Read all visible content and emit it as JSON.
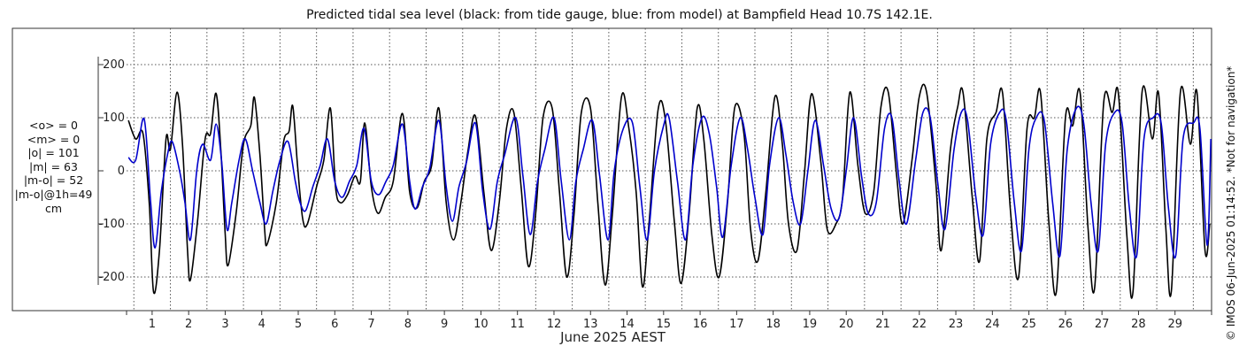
{
  "title": "Predicted tidal sea level (black: from tide gauge, blue: from model) at Bampfield Head 10.7S 142.1E.",
  "xlabel": "June 2025 AEST",
  "side_note": "© IMOS 06-Jun-2025 01:14:52. *Not for navigation*",
  "stats": [
    "<o> = 0",
    "<m> = 0",
    "|o| = 101",
    "|m| = 63",
    "|m-o| = 52",
    "|m-o|@1h=49",
    "cm"
  ],
  "colors": {
    "observed": "#000000",
    "model": "#0000cc",
    "grid": "#555555",
    "axis": "#333333"
  },
  "chart_data": {
    "type": "line",
    "title": "Predicted tidal sea level (black: from tide gauge, blue: from model) at Bampfield Head 10.7S 142.1E.",
    "xlabel": "June 2025 AEST",
    "ylabel": "",
    "xlim": [
      0.3,
      30
    ],
    "ylim": [
      -215,
      215
    ],
    "yticks": [
      -200,
      -100,
      0,
      100,
      200
    ],
    "xticks": [
      1,
      2,
      3,
      4,
      5,
      6,
      7,
      8,
      9,
      10,
      11,
      12,
      13,
      14,
      15,
      16,
      17,
      18,
      19,
      20,
      21,
      22,
      23,
      24,
      25,
      26,
      27,
      28,
      29
    ],
    "grid": {
      "x": true,
      "y": true,
      "style": "dotted"
    },
    "legend": "none",
    "series": [
      {
        "name": "from tide gauge",
        "color": "#000000",
        "points": [
          [
            0.35,
            95
          ],
          [
            0.55,
            60
          ],
          [
            0.75,
            70
          ],
          [
            0.92,
            -60
          ],
          [
            1.04,
            -228
          ],
          [
            1.2,
            -150
          ],
          [
            1.38,
            60
          ],
          [
            1.5,
            40
          ],
          [
            1.68,
            148
          ],
          [
            1.83,
            50
          ],
          [
            1.97,
            -150
          ],
          [
            2.05,
            -205
          ],
          [
            2.25,
            -90
          ],
          [
            2.45,
            60
          ],
          [
            2.6,
            70
          ],
          [
            2.75,
            146
          ],
          [
            2.88,
            40
          ],
          [
            3.0,
            -120
          ],
          [
            3.08,
            -178
          ],
          [
            3.3,
            -80
          ],
          [
            3.5,
            50
          ],
          [
            3.7,
            85
          ],
          [
            3.8,
            138
          ],
          [
            3.95,
            30
          ],
          [
            4.08,
            -110
          ],
          [
            4.15,
            -138
          ],
          [
            4.4,
            -60
          ],
          [
            4.6,
            55
          ],
          [
            4.75,
            75
          ],
          [
            4.85,
            122
          ],
          [
            4.98,
            10
          ],
          [
            5.12,
            -90
          ],
          [
            5.25,
            -100
          ],
          [
            5.5,
            -30
          ],
          [
            5.7,
            20
          ],
          [
            5.88,
            118
          ],
          [
            6.02,
            -30
          ],
          [
            6.15,
            -60
          ],
          [
            6.35,
            -45
          ],
          [
            6.55,
            -10
          ],
          [
            6.7,
            -20
          ],
          [
            6.82,
            90
          ],
          [
            7.0,
            -30
          ],
          [
            7.18,
            -80
          ],
          [
            7.38,
            -50
          ],
          [
            7.6,
            -20
          ],
          [
            7.85,
            108
          ],
          [
            8.05,
            -40
          ],
          [
            8.25,
            -70
          ],
          [
            8.45,
            -20
          ],
          [
            8.65,
            10
          ],
          [
            8.85,
            118
          ],
          [
            9.05,
            -60
          ],
          [
            9.25,
            -130
          ],
          [
            9.45,
            -60
          ],
          [
            9.65,
            40
          ],
          [
            9.85,
            103
          ],
          [
            10.08,
            -40
          ],
          [
            10.28,
            -150
          ],
          [
            10.5,
            -60
          ],
          [
            10.7,
            80
          ],
          [
            10.9,
            110
          ],
          [
            11.1,
            -30
          ],
          [
            11.3,
            -180
          ],
          [
            11.5,
            -80
          ],
          [
            11.7,
            100
          ],
          [
            11.95,
            118
          ],
          [
            12.15,
            -40
          ],
          [
            12.35,
            -200
          ],
          [
            12.55,
            -80
          ],
          [
            12.75,
            110
          ],
          [
            13.0,
            118
          ],
          [
            13.2,
            -60
          ],
          [
            13.4,
            -215
          ],
          [
            13.6,
            -80
          ],
          [
            13.85,
            140
          ],
          [
            14.05,
            80
          ],
          [
            14.25,
            -40
          ],
          [
            14.42,
            -218
          ],
          [
            14.6,
            -100
          ],
          [
            14.85,
            115
          ],
          [
            15.05,
            95
          ],
          [
            15.3,
            -100
          ],
          [
            15.48,
            -212
          ],
          [
            15.7,
            -80
          ],
          [
            15.92,
            118
          ],
          [
            16.1,
            60
          ],
          [
            16.32,
            -120
          ],
          [
            16.52,
            -200
          ],
          [
            16.75,
            -60
          ],
          [
            16.95,
            120
          ],
          [
            17.2,
            70
          ],
          [
            17.38,
            -110
          ],
          [
            17.58,
            -170
          ],
          [
            17.8,
            -40
          ],
          [
            18.05,
            140
          ],
          [
            18.25,
            50
          ],
          [
            18.42,
            -100
          ],
          [
            18.65,
            -150
          ],
          [
            18.85,
            -10
          ],
          [
            19.05,
            145
          ],
          [
            19.3,
            20
          ],
          [
            19.48,
            -110
          ],
          [
            19.72,
            -100
          ],
          [
            19.9,
            -50
          ],
          [
            20.1,
            148
          ],
          [
            20.32,
            10
          ],
          [
            20.52,
            -80
          ],
          [
            20.75,
            -40
          ],
          [
            20.95,
            120
          ],
          [
            21.15,
            148
          ],
          [
            21.38,
            -10
          ],
          [
            21.55,
            -100
          ],
          [
            21.8,
            20
          ],
          [
            22.0,
            140
          ],
          [
            22.2,
            148
          ],
          [
            22.45,
            -20
          ],
          [
            22.6,
            -150
          ],
          [
            22.85,
            40
          ],
          [
            23.05,
            120
          ],
          [
            23.2,
            146
          ],
          [
            23.45,
            -50
          ],
          [
            23.65,
            -170
          ],
          [
            23.85,
            60
          ],
          [
            24.1,
            110
          ],
          [
            24.28,
            146
          ],
          [
            24.5,
            -80
          ],
          [
            24.72,
            -200
          ],
          [
            24.95,
            80
          ],
          [
            25.15,
            100
          ],
          [
            25.32,
            146
          ],
          [
            25.55,
            -100
          ],
          [
            25.75,
            -228
          ],
          [
            26.0,
            100
          ],
          [
            26.2,
            85
          ],
          [
            26.4,
            148
          ],
          [
            26.62,
            -110
          ],
          [
            26.8,
            -220
          ],
          [
            27.05,
            130
          ],
          [
            27.28,
            110
          ],
          [
            27.45,
            146
          ],
          [
            27.68,
            -120
          ],
          [
            27.85,
            -228
          ],
          [
            28.1,
            150
          ],
          [
            28.38,
            60
          ],
          [
            28.55,
            146
          ],
          [
            28.75,
            -110
          ],
          [
            28.9,
            -226
          ],
          [
            29.15,
            150
          ],
          [
            29.42,
            50
          ],
          [
            29.6,
            148
          ],
          [
            29.82,
            -150
          ],
          [
            29.95,
            -100
          ]
        ]
      },
      {
        "name": "from model",
        "color": "#0000cc",
        "points": [
          [
            0.35,
            25
          ],
          [
            0.55,
            20
          ],
          [
            0.78,
            98
          ],
          [
            0.95,
            -50
          ],
          [
            1.08,
            -145
          ],
          [
            1.25,
            -40
          ],
          [
            1.42,
            30
          ],
          [
            1.55,
            55
          ],
          [
            1.75,
            0
          ],
          [
            1.9,
            -60
          ],
          [
            2.05,
            -130
          ],
          [
            2.22,
            0
          ],
          [
            2.38,
            50
          ],
          [
            2.6,
            20
          ],
          [
            2.75,
            88
          ],
          [
            2.9,
            20
          ],
          [
            3.05,
            -110
          ],
          [
            3.18,
            -60
          ],
          [
            3.38,
            20
          ],
          [
            3.55,
            60
          ],
          [
            3.75,
            0
          ],
          [
            3.95,
            -60
          ],
          [
            4.12,
            -100
          ],
          [
            4.3,
            -40
          ],
          [
            4.5,
            20
          ],
          [
            4.72,
            55
          ],
          [
            4.92,
            -20
          ],
          [
            5.05,
            -60
          ],
          [
            5.2,
            -75
          ],
          [
            5.4,
            -30
          ],
          [
            5.6,
            10
          ],
          [
            5.8,
            60
          ],
          [
            6.0,
            -20
          ],
          [
            6.2,
            -50
          ],
          [
            6.4,
            -20
          ],
          [
            6.6,
            10
          ],
          [
            6.8,
            80
          ],
          [
            7.0,
            -20
          ],
          [
            7.2,
            -45
          ],
          [
            7.4,
            -20
          ],
          [
            7.6,
            10
          ],
          [
            7.85,
            88
          ],
          [
            8.05,
            -20
          ],
          [
            8.2,
            -72
          ],
          [
            8.4,
            -30
          ],
          [
            8.6,
            5
          ],
          [
            8.85,
            95
          ],
          [
            9.05,
            -30
          ],
          [
            9.22,
            -95
          ],
          [
            9.4,
            -30
          ],
          [
            9.6,
            15
          ],
          [
            9.85,
            90
          ],
          [
            10.05,
            -40
          ],
          [
            10.25,
            -110
          ],
          [
            10.45,
            -20
          ],
          [
            10.65,
            30
          ],
          [
            10.95,
            100
          ],
          [
            11.15,
            -10
          ],
          [
            11.35,
            -120
          ],
          [
            11.55,
            -20
          ],
          [
            11.75,
            40
          ],
          [
            12.0,
            100
          ],
          [
            12.2,
            -20
          ],
          [
            12.42,
            -130
          ],
          [
            12.6,
            -20
          ],
          [
            12.8,
            40
          ],
          [
            13.05,
            95
          ],
          [
            13.25,
            -10
          ],
          [
            13.48,
            -130
          ],
          [
            13.65,
            0
          ],
          [
            13.9,
            80
          ],
          [
            14.15,
            90
          ],
          [
            14.35,
            -30
          ],
          [
            14.55,
            -130
          ],
          [
            14.75,
            0
          ],
          [
            15.0,
            85
          ],
          [
            15.15,
            100
          ],
          [
            15.38,
            -20
          ],
          [
            15.6,
            -130
          ],
          [
            15.8,
            10
          ],
          [
            16.05,
            100
          ],
          [
            16.25,
            70
          ],
          [
            16.45,
            -30
          ],
          [
            16.62,
            -125
          ],
          [
            16.85,
            10
          ],
          [
            17.1,
            100
          ],
          [
            17.3,
            40
          ],
          [
            17.5,
            -50
          ],
          [
            17.72,
            -120
          ],
          [
            17.9,
            10
          ],
          [
            18.15,
            100
          ],
          [
            18.35,
            30
          ],
          [
            18.55,
            -60
          ],
          [
            18.75,
            -100
          ],
          [
            18.95,
            0
          ],
          [
            19.15,
            95
          ],
          [
            19.38,
            10
          ],
          [
            19.58,
            -70
          ],
          [
            19.8,
            -90
          ],
          [
            20.0,
            0
          ],
          [
            20.2,
            100
          ],
          [
            20.42,
            -10
          ],
          [
            20.6,
            -80
          ],
          [
            20.82,
            -60
          ],
          [
            21.05,
            80
          ],
          [
            21.25,
            100
          ],
          [
            21.45,
            -20
          ],
          [
            21.65,
            -100
          ],
          [
            21.9,
            20
          ],
          [
            22.1,
            110
          ],
          [
            22.3,
            100
          ],
          [
            22.5,
            -20
          ],
          [
            22.7,
            -110
          ],
          [
            22.95,
            40
          ],
          [
            23.15,
            110
          ],
          [
            23.32,
            95
          ],
          [
            23.55,
            -50
          ],
          [
            23.75,
            -120
          ],
          [
            23.95,
            50
          ],
          [
            24.2,
            110
          ],
          [
            24.38,
            95
          ],
          [
            24.6,
            -60
          ],
          [
            24.8,
            -150
          ],
          [
            25.0,
            40
          ],
          [
            25.2,
            100
          ],
          [
            25.42,
            95
          ],
          [
            25.65,
            -60
          ],
          [
            25.85,
            -160
          ],
          [
            26.05,
            40
          ],
          [
            26.3,
            118
          ],
          [
            26.5,
            90
          ],
          [
            26.7,
            -60
          ],
          [
            26.9,
            -150
          ],
          [
            27.1,
            50
          ],
          [
            27.35,
            110
          ],
          [
            27.55,
            90
          ],
          [
            27.75,
            -70
          ],
          [
            27.95,
            -160
          ],
          [
            28.15,
            60
          ],
          [
            28.4,
            100
          ],
          [
            28.62,
            90
          ],
          [
            28.82,
            -70
          ],
          [
            29.02,
            -160
          ],
          [
            29.22,
            60
          ],
          [
            29.5,
            90
          ],
          [
            29.68,
            80
          ],
          [
            29.88,
            -140
          ],
          [
            29.98,
            60
          ]
        ]
      }
    ]
  }
}
